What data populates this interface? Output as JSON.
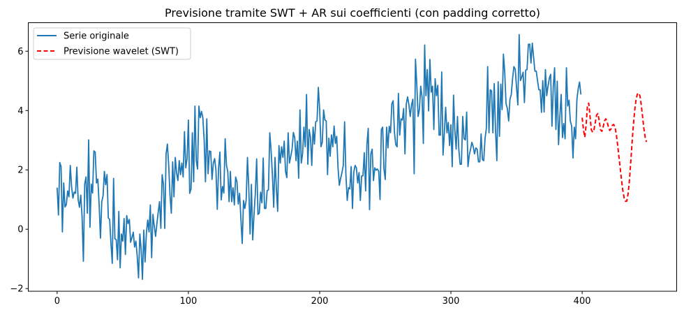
{
  "chart_data": {
    "type": "line",
    "title": "Previsione tramite SWT + AR sui coefficienti (con padding corretto)",
    "xlabel": "",
    "ylabel": "",
    "xlim": [
      -22,
      472
    ],
    "ylim": [
      -2.09,
      6.96
    ],
    "xticks": [
      0,
      100,
      200,
      300,
      400
    ],
    "yticks": [
      -2,
      0,
      2,
      4,
      6
    ],
    "grid": false,
    "legend_position": "top-left",
    "series": [
      {
        "name": "Serie originale",
        "color": "#1f77b4",
        "style": "solid",
        "x_start": 0,
        "values": [
          1.4,
          0.48,
          2.25,
          2.11,
          -0.09,
          1.56,
          0.75,
          0.83,
          1.29,
          1.09,
          2.15,
          1.44,
          1.05,
          1.25,
          1.21,
          2.09,
          1.0,
          0.74,
          1.15,
          0.42,
          -1.08,
          1.52,
          1.76,
          0.54,
          3.01,
          0.07,
          1.52,
          1.22,
          2.64,
          2.6,
          1.56,
          1.69,
          0.82,
          -0.3,
          0.93,
          1.13,
          1.95,
          1.5,
          1.84,
          0.38,
          0.33,
          -0.48,
          -1.15,
          1.71,
          -0.32,
          -0.35,
          -1.03,
          0.6,
          -1.3,
          -0.16,
          -0.4,
          0.36,
          -0.85,
          0.46,
          0.19,
          0.33,
          -0.44,
          -0.28,
          -0.1,
          -0.6,
          -0.4,
          -0.91,
          -1.64,
          -0.16,
          -0.67,
          -1.69,
          -0.03,
          -1.1,
          -0.13,
          0.31,
          -0.09,
          0.82,
          -0.96,
          0.5,
          0.1,
          -0.24,
          0.19,
          0.58,
          0.93,
          0.03,
          1.84,
          1.52,
          0.03,
          2.54,
          2.87,
          2.15,
          1.13,
          0.54,
          2.27,
          1.09,
          2.42,
          1.9,
          1.64,
          2.31,
          1.84,
          2.23,
          1.76,
          3.29,
          2.07,
          2.38,
          3.68,
          1.21,
          1.36,
          3.25,
          1.6,
          4.15,
          2.31,
          2.03,
          4.15,
          3.76,
          3.97,
          3.76,
          3.01,
          1.6,
          3.72,
          1.87,
          2.64,
          2.62,
          1.68,
          2.23,
          2.38,
          1.99,
          0.67,
          2.07,
          2.6,
          0.99,
          1.44,
          1.22,
          3.05,
          2.15,
          1.95,
          0.93,
          1.95,
          0.93,
          1.4,
          0.82,
          1.76,
          1.6,
          0.85,
          1.21,
          0.35,
          -0.48,
          0.97,
          0.7,
          0.97,
          2.42,
          1.4,
          -0.16,
          1.51,
          -0.36,
          0.5,
          1.21,
          2.37,
          0.5,
          0.54,
          1.25,
          0.89,
          2.4,
          0.7,
          0.7,
          1.3,
          1.33,
          3.25,
          2.66,
          1.84,
          0.74,
          2.42,
          1.4,
          0.6,
          2.82,
          2.23,
          2.78,
          2.42,
          2.97,
          1.95,
          1.74,
          3.25,
          2.23,
          2.46,
          2.7,
          3.26,
          3.09,
          2.31,
          2.97,
          1.72,
          4.02,
          2.23,
          2.54,
          3.44,
          2.78,
          4.54,
          2.19,
          3.36,
          3.09,
          2.15,
          3.44,
          2.87,
          3.62,
          3.65,
          4.78,
          4.03,
          2.78,
          2.93,
          4.02,
          3.68,
          3.65,
          1.84,
          3.07,
          2.46,
          3.18,
          2.78,
          3.48,
          2.89,
          3.13,
          2.07,
          1.48,
          1.72,
          1.91,
          2.15,
          3.62,
          1.84,
          0.97,
          1.4,
          1.36,
          2.11,
          0.7,
          1.91,
          2.15,
          2.07,
          1.56,
          1.91,
          0.97,
          1.8,
          1.8,
          2.58,
          1.29,
          2.85,
          3.4,
          0.66,
          2.54,
          2.7,
          1.64,
          2.07,
          1.99,
          2.03,
          1.95,
          1.0,
          3.36,
          3.44,
          2.03,
          1.68,
          3.44,
          2.74,
          3.47,
          3.25,
          4.23,
          4.33,
          3.25,
          2.85,
          2.78,
          4.58,
          3.17,
          3.72,
          3.68,
          4.07,
          2.54,
          4.23,
          4.46,
          4.19,
          3.8,
          4.19,
          4.38,
          1.87,
          5.73,
          4.89,
          3.8,
          4.03,
          4.82,
          4.46,
          2.89,
          6.21,
          4.5,
          5.38,
          3.99,
          5.72,
          4.62,
          4.82,
          3.36,
          5.07,
          4.5,
          4.85,
          3.17,
          3.17,
          5.3,
          2.5,
          3.25,
          4.11,
          3.25,
          3.6,
          2.82,
          3.52,
          2.11,
          4.52,
          3.33,
          2.7,
          3.8,
          2.7,
          2.19,
          2.19,
          3.8,
          3.05,
          3.01,
          3.95,
          2.11,
          2.5,
          2.7,
          2.93,
          2.78,
          2.54,
          2.74,
          2.7,
          2.27,
          2.27,
          3.21,
          2.35,
          2.31,
          3.05,
          3.4,
          5.48,
          3.25,
          4.7,
          4.66,
          3.25,
          4.91,
          3.33,
          2.31,
          4.97,
          3.13,
          4.89,
          4.03,
          5.9,
          5.29,
          4.23,
          4.07,
          3.65,
          4.38,
          4.54,
          5.09,
          5.48,
          5.4,
          4.78,
          4.19,
          6.56,
          5.01,
          5.13,
          5.29,
          4.27,
          5.36,
          5.38,
          6.23,
          6.24,
          5.6,
          6.27,
          5.8,
          5.33,
          5.33,
          5.01,
          4.7,
          4.7,
          3.94,
          5.01,
          3.95,
          5.38,
          4.5,
          4.82,
          5.09,
          5.22,
          3.47,
          4.82,
          5.44,
          3.36,
          4.99,
          2.85,
          3.8,
          4.54,
          3.09,
          3.56,
          3.05,
          5.44,
          4.15,
          4.35,
          3.64,
          3.48,
          2.4,
          3.44,
          3.05,
          4.38,
          4.74,
          4.96,
          4.54
        ]
      },
      {
        "name": "Previsione wavelet (SWT)",
        "color": "#ff0000",
        "style": "dashed",
        "x_start": 400,
        "values": [
          3.76,
          3.35,
          3.1,
          3.5,
          4.15,
          4.25,
          3.8,
          3.35,
          3.27,
          3.35,
          3.6,
          3.85,
          3.9,
          3.65,
          3.35,
          3.3,
          3.45,
          3.65,
          3.72,
          3.62,
          3.45,
          3.33,
          3.38,
          3.5,
          3.53,
          3.45,
          3.2,
          2.85,
          2.45,
          2.05,
          1.65,
          1.3,
          1.05,
          0.94,
          0.95,
          1.2,
          1.65,
          2.25,
          2.9,
          3.5,
          4.0,
          4.35,
          4.55,
          4.59,
          4.5,
          4.2,
          3.8,
          3.4,
          3.1,
          2.94
        ]
      }
    ]
  }
}
